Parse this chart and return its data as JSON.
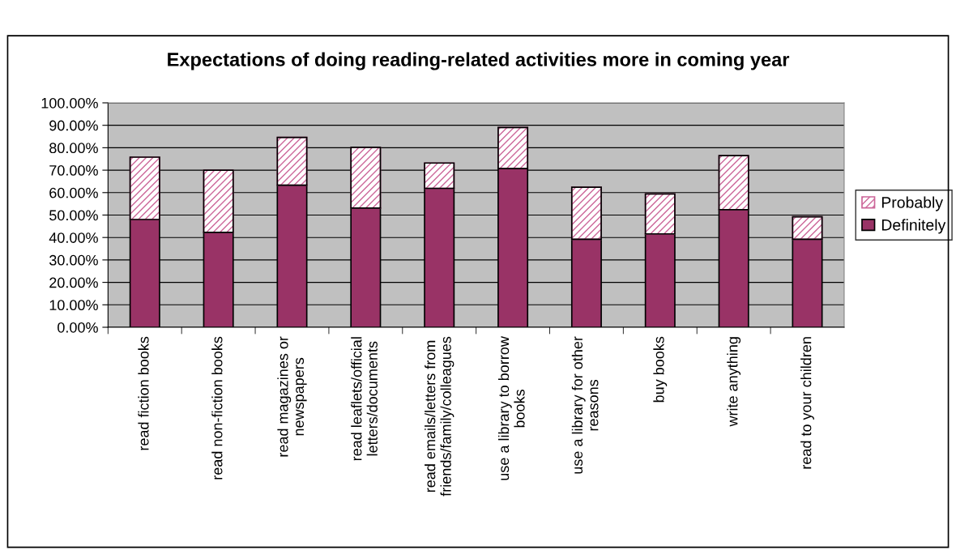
{
  "chart_data": {
    "type": "bar",
    "title": "Expectations of doing reading-related activities more in coming year",
    "stacked": true,
    "categories": [
      "read fiction books",
      "read non-fiction books",
      "read magazines or\nnewspapers",
      "read leaflets/official\nletters/documents",
      "read emails/letters from\nfriends/family/colleagues",
      "use a library to borrow\nbooks",
      "use a library for other\nreasons",
      "buy books",
      "write anything",
      "read to your children"
    ],
    "series": [
      {
        "name": "Definitely",
        "color": "#993366",
        "values": [
          48.0,
          42.3,
          63.3,
          53.1,
          61.9,
          70.7,
          39.2,
          41.6,
          52.4,
          39.2
        ]
      },
      {
        "name": "Probably",
        "color": "#cc6699",
        "values": [
          27.8,
          27.7,
          21.3,
          27.1,
          11.3,
          18.3,
          23.2,
          17.8,
          24.1,
          10.0
        ]
      }
    ],
    "ylim": [
      0,
      100
    ],
    "yticks": [
      {
        "value": 0,
        "label": "0.00%"
      },
      {
        "value": 10,
        "label": "10.00%"
      },
      {
        "value": 20,
        "label": "20.00%"
      },
      {
        "value": 30,
        "label": "30.00%"
      },
      {
        "value": 40,
        "label": "40.00%"
      },
      {
        "value": 50,
        "label": "50.00%"
      },
      {
        "value": 60,
        "label": "60.00%"
      },
      {
        "value": 70,
        "label": "70.00%"
      },
      {
        "value": 80,
        "label": "80.00%"
      },
      {
        "value": 90,
        "label": "90.00%"
      },
      {
        "value": 100,
        "label": "100.00%"
      }
    ],
    "grid": "y",
    "legend": "right"
  }
}
